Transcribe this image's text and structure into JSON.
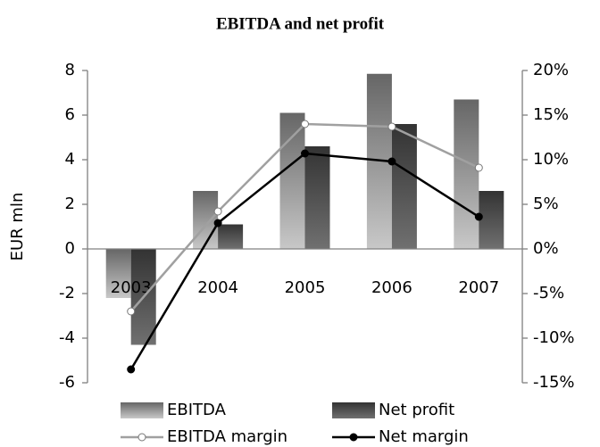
{
  "chart_data": {
    "type": "bar",
    "title": "EBITDA and net profit",
    "ylabel": "EUR mln",
    "categories": [
      "2003",
      "2004",
      "2005",
      "2006",
      "2007"
    ],
    "series": [
      {
        "name": "EBITDA",
        "type": "bar",
        "color": "#888888",
        "values": [
          -2.2,
          2.6,
          6.1,
          7.85,
          6.7
        ]
      },
      {
        "name": "Net profit",
        "type": "bar",
        "color": "#444444",
        "values": [
          -4.3,
          1.1,
          4.6,
          5.6,
          2.6
        ]
      },
      {
        "name": "EBITDA margin",
        "type": "line",
        "axis": "y2",
        "color": "#a0a0a0",
        "values": [
          -7,
          4.2,
          14,
          13.7,
          9.1
        ]
      },
      {
        "name": "Net margin",
        "type": "line",
        "axis": "y2",
        "color": "#000000",
        "values": [
          -13.5,
          2.9,
          10.7,
          9.8,
          3.6
        ]
      }
    ],
    "ylim": [
      -6,
      8
    ],
    "yticks": [
      -6,
      -4,
      -2,
      0,
      2,
      4,
      6,
      8
    ],
    "y2lim": [
      -15,
      20
    ],
    "y2ticks": [
      {
        "value": -15,
        "label": "-15%"
      },
      {
        "value": -10,
        "label": "-10%"
      },
      {
        "value": -5,
        "label": "-5%"
      },
      {
        "value": 0,
        "label": "0%"
      },
      {
        "value": 5,
        "label": "5%"
      },
      {
        "value": 10,
        "label": "10%"
      },
      {
        "value": 15,
        "label": "15%"
      },
      {
        "value": 20,
        "label": "20%"
      }
    ],
    "grid": false,
    "legend": "bottom"
  }
}
